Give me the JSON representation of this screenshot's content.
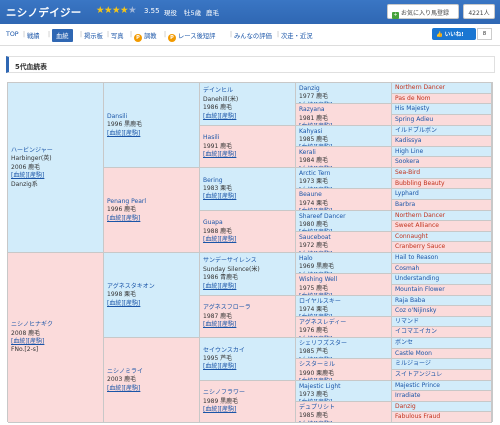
{
  "header": {
    "horse_name": "ニシノデイジー",
    "stars": "★★★★",
    "stars_off": "★",
    "rating": "3.55",
    "status": "現役",
    "sex_age": "牡5歳",
    "coat": "鹿毛",
    "fav_label": "お気に入り馬登録",
    "fav_count": "4221人"
  },
  "tabs": [
    {
      "label": "TOP"
    },
    {
      "label": "戦績"
    },
    {
      "label": "血統"
    },
    {
      "label": "掲示板"
    },
    {
      "label": "写真"
    },
    {
      "label": "調教",
      "badge": "P"
    },
    {
      "label": "レース後短評",
      "badge": "P"
    },
    {
      "label": "みんなの評価"
    },
    {
      "label": "次走・近況"
    }
  ],
  "like": {
    "label": "いいね!",
    "count": "8"
  },
  "section_title": "5代血統表",
  "link_label": "[血統][産駒]",
  "pedigree": {
    "g1": [
      {
        "name": "ハービンジャー",
        "en": "Harbinger(英)",
        "info": "2006 鹿毛",
        "extra": "Danzig系"
      },
      {
        "name": "ニシノヒナギク",
        "info": "2008 鹿毛",
        "extra": "FNo.[2-s]"
      }
    ],
    "g2": [
      {
        "name": "Dansili",
        "info": "1996 黒鹿毛"
      },
      {
        "name": "Penang Pearl",
        "info": "1996 鹿毛"
      },
      {
        "name": "アグネスタキオン",
        "info": "1998 栗毛"
      },
      {
        "name": "ニシノミライ",
        "info": "2003 鹿毛"
      }
    ],
    "g3": [
      {
        "name": "デインヒル",
        "en": "Danehill(米)",
        "info": "1986 鹿毛"
      },
      {
        "name": "Hasili",
        "info": "1991 鹿毛"
      },
      {
        "name": "Bering",
        "info": "1983 栗毛"
      },
      {
        "name": "Guapa",
        "info": "1988 鹿毛"
      },
      {
        "name": "サンデーサイレンス",
        "en": "Sunday Silence(米)",
        "info": "1986 青鹿毛"
      },
      {
        "name": "アグネスフローラ",
        "info": "1987 鹿毛"
      },
      {
        "name": "セイウンスカイ",
        "info": "1995 芦毛"
      },
      {
        "name": "ニシノフラワー",
        "info": "1989 黒鹿毛"
      }
    ],
    "g4": [
      {
        "name": "Danzig",
        "info": "1977 鹿毛"
      },
      {
        "name": "Razyana",
        "info": "1981 鹿毛"
      },
      {
        "name": "Kahyasi",
        "info": "1985 鹿毛"
      },
      {
        "name": "Kerali",
        "info": "1984 鹿毛"
      },
      {
        "name": "Arctic Tern",
        "info": "1973 栗毛"
      },
      {
        "name": "Beaune",
        "info": "1974 栗毛"
      },
      {
        "name": "Shareef Dancer",
        "info": "1980 鹿毛"
      },
      {
        "name": "Sauceboat",
        "info": "1972 鹿毛"
      },
      {
        "name": "Halo",
        "info": "1969 黒鹿毛"
      },
      {
        "name": "Wishing Well",
        "info": "1975 鹿毛"
      },
      {
        "name": "ロイヤルスキー",
        "info": "1974 栗毛"
      },
      {
        "name": "アグネスレディー",
        "info": "1976 鹿毛"
      },
      {
        "name": "シェリフズスター",
        "info": "1985 芦毛"
      },
      {
        "name": "シスターミル",
        "info": "1990 栗鹿毛"
      },
      {
        "name": "Majestic Light",
        "info": "1973 鹿毛"
      },
      {
        "name": "デュプリシト",
        "info": "1985 鹿毛"
      }
    ],
    "g5": [
      "Northern Dancer",
      "Pas de Nom",
      "His Majesty",
      "Spring Adieu",
      "イルドブルボン",
      "Kadissya",
      "High Line",
      "Sookera",
      "Sea-Bird",
      "Bubbling Beauty",
      "Lyphard",
      "Barbra",
      "Northern Dancer",
      "Sweet Alliance",
      "Connaught",
      "Cranberry Sauce",
      "Hail to Reason",
      "Cosmah",
      "Understanding",
      "Mountain Flower",
      "Raja Baba",
      "Coz o'Nijinsky",
      "リマンド",
      "イコマエイカン",
      "ボンセ",
      "Castle Moon",
      "ミルジョージ",
      "スイトアンジュレ",
      "Majestic Prince",
      "Irradiate",
      "Danzig",
      "Fabulous Fraud"
    ],
    "g5_red": [
      0,
      1,
      8,
      9,
      12,
      13,
      14,
      15,
      30,
      31
    ]
  }
}
